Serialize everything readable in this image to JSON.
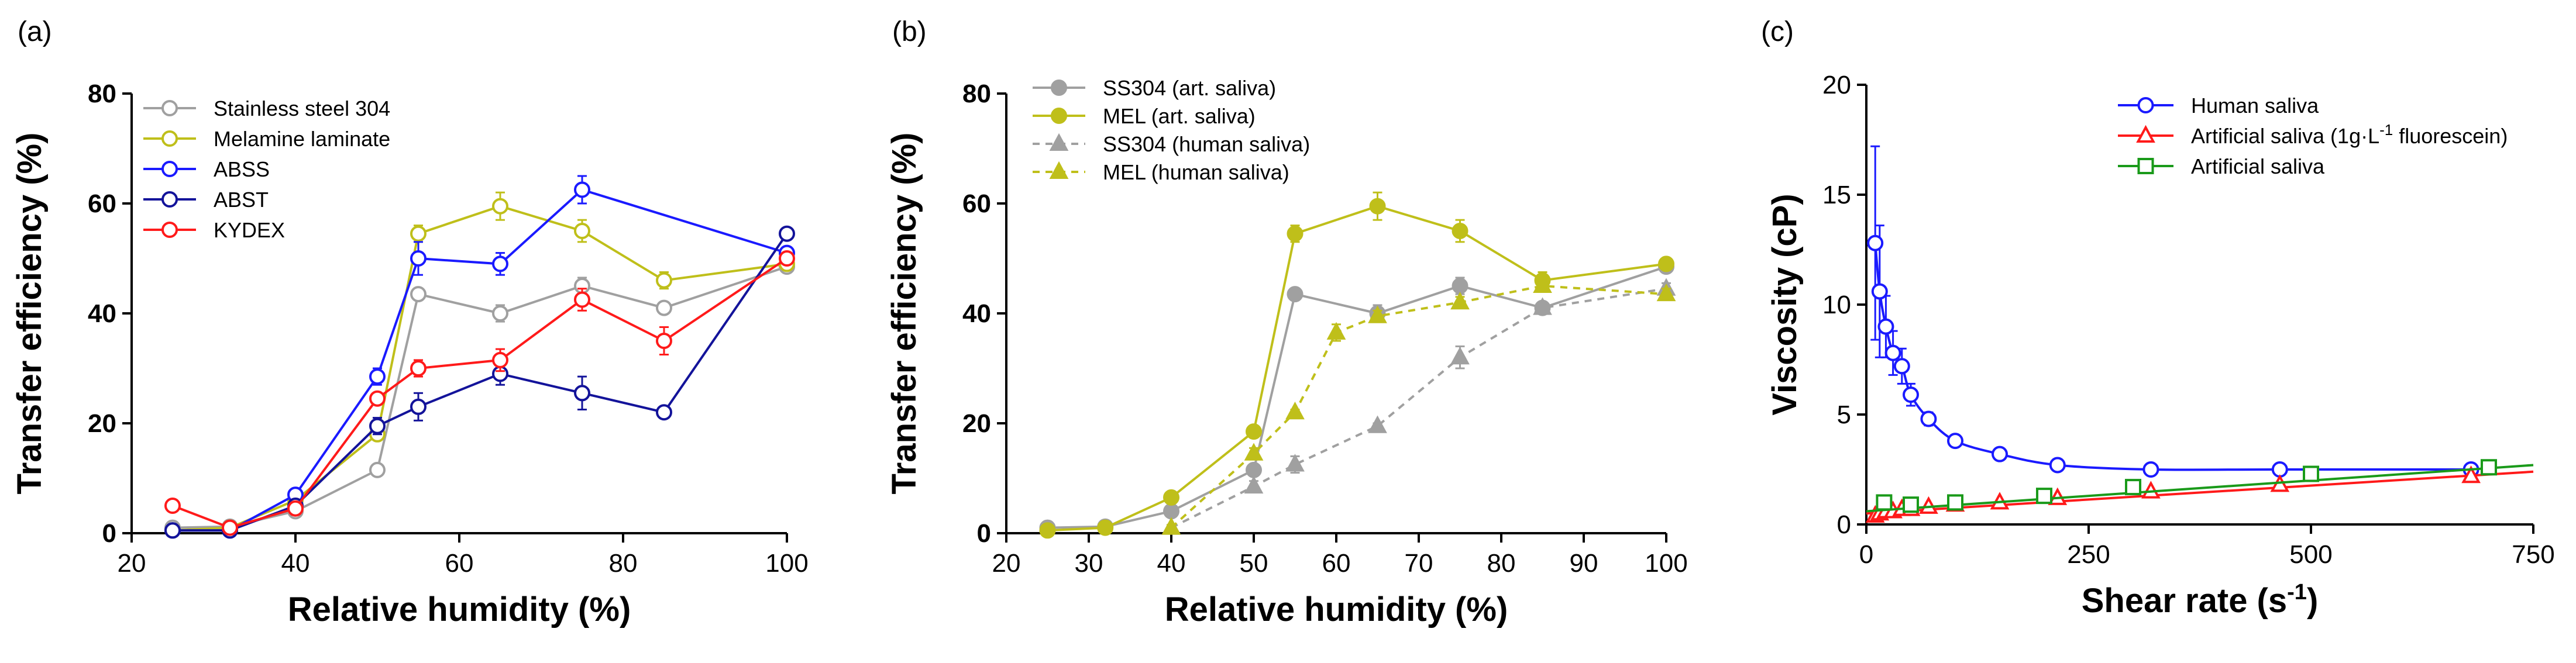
{
  "chart_data": [
    {
      "panel": "(a)",
      "type": "line",
      "xlabel": "Relative humidity (%)",
      "ylabel": "Transfer efficiency (%)",
      "xlim": [
        20,
        100
      ],
      "ylim": [
        0,
        80
      ],
      "xticks": [
        20,
        40,
        60,
        80,
        100
      ],
      "yticks": [
        0,
        20,
        40,
        60,
        80
      ],
      "series": [
        {
          "name": "Stainless steel 304",
          "color": "#a0a0a0",
          "marker": "circle-open",
          "dash": "solid",
          "x": [
            25,
            32,
            40,
            50,
            55,
            65,
            75,
            85,
            100
          ],
          "y": [
            1.0,
            1.2,
            4.0,
            11.5,
            43.5,
            40.0,
            45.0,
            41.0,
            48.5
          ],
          "err": [
            0.5,
            0.5,
            0.5,
            1.0,
            1.0,
            1.5,
            1.5,
            1.0,
            1.0
          ]
        },
        {
          "name": "Melamine laminate",
          "color": "#bfbf1a",
          "marker": "circle-open",
          "dash": "solid",
          "x": [
            25,
            32,
            40,
            50,
            55,
            65,
            75,
            85,
            100
          ],
          "y": [
            0.5,
            1.0,
            6.0,
            18.0,
            54.5,
            59.5,
            55.0,
            46.0,
            49.0
          ],
          "err": [
            0.5,
            0.5,
            0.5,
            1.0,
            1.5,
            2.5,
            2.0,
            1.5,
            1.0
          ]
        },
        {
          "name": "ABSS",
          "color": "#1a1aff",
          "marker": "circle-open",
          "dash": "solid",
          "x": [
            25,
            32,
            40,
            50,
            55,
            65,
            75,
            100
          ],
          "y": [
            0.5,
            0.5,
            7.0,
            28.5,
            50.0,
            49.0,
            62.5,
            51.0
          ],
          "err": [
            0.5,
            0.5,
            0.5,
            1.5,
            3.0,
            2.0,
            2.5,
            1.0
          ]
        },
        {
          "name": "ABST",
          "color": "#13139a",
          "marker": "circle-open",
          "dash": "solid",
          "x": [
            25,
            32,
            40,
            50,
            55,
            65,
            75,
            85,
            100
          ],
          "y": [
            0.5,
            0.5,
            5.0,
            19.5,
            23.0,
            29.0,
            25.5,
            22.0,
            54.5
          ],
          "err": [
            0.5,
            0.5,
            0.5,
            1.5,
            2.5,
            2.0,
            3.0,
            0.5,
            1.0
          ]
        },
        {
          "name": "KYDEX",
          "color": "#ff1a1a",
          "marker": "circle-open",
          "dash": "solid",
          "x": [
            25,
            32,
            40,
            50,
            55,
            65,
            75,
            85,
            100
          ],
          "y": [
            5.0,
            1.0,
            4.5,
            24.5,
            30.0,
            31.5,
            42.5,
            35.0,
            50.0
          ],
          "err": [
            0.5,
            0.5,
            0.5,
            1.0,
            1.5,
            2.0,
            2.0,
            2.5,
            1.0
          ]
        }
      ]
    },
    {
      "panel": "(b)",
      "type": "line",
      "xlabel": "Relative humidity (%)",
      "ylabel": "Transfer efficiency (%)",
      "xlim": [
        20,
        100
      ],
      "ylim": [
        0,
        80
      ],
      "xticks": [
        20,
        30,
        40,
        50,
        60,
        70,
        80,
        90,
        100
      ],
      "yticks": [
        0,
        20,
        40,
        60,
        80
      ],
      "series": [
        {
          "name": "SS304 (art. saliva)",
          "color": "#a0a0a0",
          "marker": "circle-filled",
          "dash": "solid",
          "x": [
            25,
            32,
            40,
            50,
            55,
            65,
            75,
            85,
            100
          ],
          "y": [
            1.0,
            1.2,
            4.0,
            11.5,
            43.5,
            40.0,
            45.0,
            41.0,
            48.5
          ],
          "err": [
            0.5,
            0.5,
            0.5,
            1.0,
            1.0,
            1.5,
            1.5,
            1.0,
            1.0
          ]
        },
        {
          "name": "MEL (art. saliva)",
          "color": "#bfbf1a",
          "marker": "circle-filled",
          "dash": "solid",
          "x": [
            25,
            32,
            40,
            50,
            55,
            65,
            75,
            85,
            100
          ],
          "y": [
            0.5,
            1.0,
            6.5,
            18.5,
            54.5,
            59.5,
            55.0,
            46.0,
            49.0
          ],
          "err": [
            0.5,
            0.5,
            0.5,
            1.0,
            1.5,
            2.5,
            2.0,
            1.5,
            1.0
          ]
        },
        {
          "name": "SS304 (human saliva)",
          "color": "#a0a0a0",
          "marker": "triangle-filled",
          "dash": "dashed",
          "x": [
            40,
            50,
            55,
            65,
            75,
            85,
            100
          ],
          "y": [
            1.0,
            8.5,
            12.5,
            19.5,
            32.0,
            41.0,
            44.5
          ],
          "err": [
            0.5,
            1.0,
            1.5,
            0.5,
            2.0,
            1.0,
            1.0
          ]
        },
        {
          "name": "MEL (human saliva)",
          "color": "#bfbf1a",
          "marker": "triangle-filled",
          "dash": "dashed",
          "x": [
            40,
            50,
            55,
            60,
            65,
            75,
            85,
            100
          ],
          "y": [
            1.0,
            14.5,
            22.0,
            36.5,
            39.5,
            42.0,
            45.0,
            43.5
          ],
          "err": [
            0.5,
            1.0,
            0.5,
            1.5,
            1.0,
            1.0,
            1.0,
            1.0
          ]
        }
      ]
    },
    {
      "panel": "(c)",
      "type": "line",
      "xlabel": "Shear rate (s",
      "xlabel_sup": "-1",
      "xlabel_end": ")",
      "ylabel": "Viscosity (cP)",
      "xlim": [
        0,
        750
      ],
      "ylim": [
        0,
        20
      ],
      "xticks": [
        0,
        250,
        500,
        750
      ],
      "yticks": [
        0,
        5,
        10,
        15,
        20
      ],
      "series": [
        {
          "name": "Human saliva",
          "color": "#1a1aff",
          "marker": "circle-open",
          "curve": "smooth",
          "x": [
            10,
            15,
            22,
            30,
            40,
            50,
            70,
            100,
            150,
            215,
            320,
            465,
            680
          ],
          "y": [
            12.8,
            10.6,
            9.0,
            7.8,
            7.2,
            5.9,
            4.8,
            3.8,
            3.2,
            2.7,
            2.5,
            2.5,
            2.5
          ],
          "err": [
            4.4,
            3.0,
            1.4,
            1.0,
            0.8,
            0.5,
            0.3,
            0.2,
            0.1,
            0.1,
            0.1,
            0.1,
            0.1
          ]
        },
        {
          "name": "Artificial saliva (1g·L",
          "name_sup": "-1",
          "name_end": " fluorescein)",
          "color": "#ff1a1a",
          "marker": "triangle-open",
          "curve": "fit",
          "x": [
            10,
            15,
            22,
            30,
            40,
            50,
            70,
            100,
            150,
            215,
            320,
            465,
            680
          ],
          "y": [
            0.4,
            0.5,
            0.6,
            0.6,
            0.7,
            0.7,
            0.8,
            0.9,
            1.0,
            1.2,
            1.5,
            1.8,
            2.2
          ],
          "fit_x": [
            0,
            750
          ],
          "fit_y": [
            0.5,
            2.4
          ]
        },
        {
          "name": "Artificial saliva",
          "color": "#1a9a1a",
          "marker": "square-open",
          "curve": "fit",
          "x": [
            20,
            50,
            100,
            200,
            300,
            500,
            700
          ],
          "y": [
            1.0,
            0.9,
            1.0,
            1.3,
            1.7,
            2.3,
            2.6
          ],
          "fit_x": [
            0,
            750
          ],
          "fit_y": [
            0.6,
            2.7
          ]
        }
      ]
    }
  ]
}
